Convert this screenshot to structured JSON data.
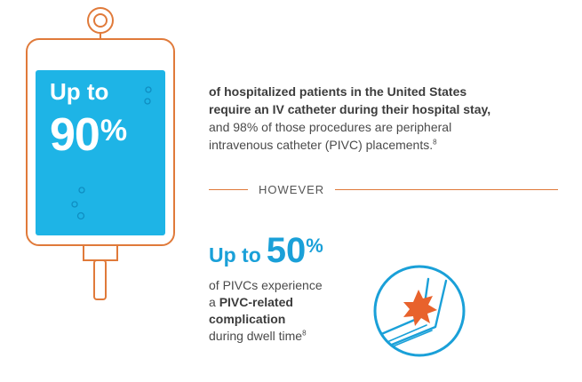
{
  "colors": {
    "accent_orange": "#e07a3a",
    "accent_blue": "#1aa0d8",
    "bag_fill": "#1eb4e6",
    "text": "#4a4a4a"
  },
  "iv_bag": {
    "stat_prefix": "Up to",
    "stat_value": "90",
    "stat_percent_sign": "%"
  },
  "intro": {
    "bold_line_1": "of hospitalized patients in the United States",
    "bold_line_2": "require an IV catheter during their hospital stay,",
    "line_3": "and 98% of those procedures are peripheral",
    "line_4": "intravenous catheter (PIVC) placements.",
    "ref": "8"
  },
  "divider": {
    "label": "HOWEVER"
  },
  "complication_stat": {
    "prefix": "Up to",
    "value": "50",
    "percent_sign": "%"
  },
  "complication_text": {
    "line_1": "of PIVCs experience",
    "line_2_plain": "a ",
    "line_2_bold": "PIVC-related",
    "line_3_bold": "complication",
    "line_4": "during dwell time",
    "ref": "8"
  },
  "icons": {
    "iv_bag": "iv-bag-icon",
    "arm_complication": "arm-complication-icon"
  }
}
